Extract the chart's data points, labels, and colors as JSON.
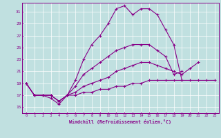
{
  "xlabel": "Windchill (Refroidissement éolien,°C)",
  "ylabel": "",
  "background_color": "#c0e0e0",
  "line_color": "#880088",
  "xlim": [
    -0.5,
    23.5
  ],
  "ylim": [
    14.0,
    32.5
  ],
  "yticks": [
    15,
    17,
    19,
    21,
    23,
    25,
    27,
    29,
    31
  ],
  "xticks": [
    0,
    1,
    2,
    3,
    4,
    5,
    6,
    7,
    8,
    9,
    10,
    11,
    12,
    13,
    14,
    15,
    16,
    17,
    18,
    19,
    20,
    21,
    22,
    23
  ],
  "series": [
    [
      19.0,
      17.0,
      17.0,
      16.5,
      15.5,
      17.0,
      19.5,
      23.0,
      25.5,
      27.0,
      29.0,
      31.5,
      32.0,
      30.5,
      31.5,
      31.5,
      30.5,
      28.0,
      25.5,
      19.5,
      null,
      null,
      null,
      null
    ],
    [
      19.0,
      17.0,
      17.0,
      17.0,
      16.0,
      17.0,
      18.5,
      20.5,
      21.5,
      22.5,
      23.5,
      24.5,
      25.0,
      25.5,
      25.5,
      25.5,
      24.5,
      23.5,
      20.5,
      21.0,
      null,
      null,
      null,
      null
    ],
    [
      19.0,
      17.0,
      17.0,
      17.0,
      16.0,
      17.0,
      17.5,
      18.5,
      19.0,
      19.5,
      20.0,
      21.0,
      21.5,
      22.0,
      22.5,
      22.5,
      22.0,
      21.5,
      21.0,
      20.5,
      21.5,
      22.5,
      null,
      null
    ],
    [
      19.0,
      17.0,
      17.0,
      17.0,
      16.0,
      17.0,
      17.0,
      17.5,
      17.5,
      18.0,
      18.0,
      18.5,
      18.5,
      19.0,
      19.0,
      19.5,
      19.5,
      19.5,
      19.5,
      19.5,
      19.5,
      19.5,
      19.5,
      19.5
    ]
  ]
}
